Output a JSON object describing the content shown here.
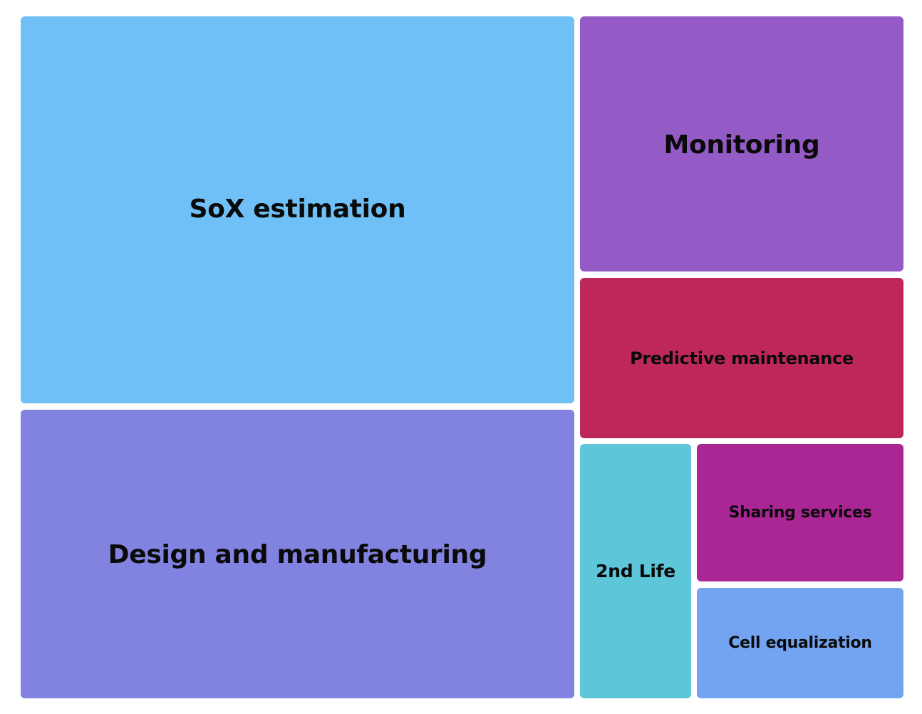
{
  "chart_data": {
    "type": "treemap",
    "title": "",
    "items": [
      {
        "label": "SoX estimation",
        "color": "#6ec0f6"
      },
      {
        "label": "Design and manufacturing",
        "color": "#8282e0"
      },
      {
        "label": "Monitoring",
        "color": "#945bc7"
      },
      {
        "label": "Predictive maintenance",
        "color": "#bd275c"
      },
      {
        "label": "2nd Life",
        "color": "#5ec6d9"
      },
      {
        "label": "Sharing services",
        "color": "#aa2695"
      },
      {
        "label": "Cell equalization",
        "color": "#72a4f2"
      }
    ]
  }
}
